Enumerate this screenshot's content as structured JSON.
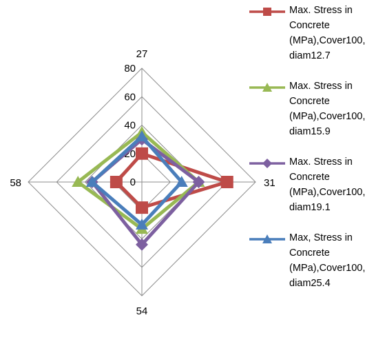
{
  "chart_data": {
    "type": "radar",
    "categories": [
      "27",
      "31",
      "54",
      "58"
    ],
    "rlim": [
      0,
      80
    ],
    "rticks": [
      0,
      20,
      40,
      60,
      80
    ],
    "grid": true,
    "legend_position": "right",
    "series": [
      {
        "name": "Max. Stress in Concrete (MPa),Cover100, diam12.7",
        "color": "#BE4B48",
        "marker": "square",
        "values": [
          20,
          60,
          18,
          18
        ]
      },
      {
        "name": "Max. Stress in Concrete (MPa),Cover100, diam15.9",
        "color": "#98B954",
        "marker": "triangle",
        "values": [
          35,
          40,
          33,
          45
        ]
      },
      {
        "name": "Max. Stress in Concrete (MPa),Cover100, diam19.1",
        "color": "#7D60A0",
        "marker": "diamond",
        "values": [
          30,
          40,
          44,
          35
        ]
      },
      {
        "name": "Max, Stress in Concrete (MPa),Cover100, diam25.4",
        "color": "#4A7EBB",
        "marker": "triangle",
        "values": [
          32,
          28,
          30,
          35
        ]
      }
    ]
  },
  "legend": {
    "items": [
      {
        "lines": [
          "Max. Stress in",
          "Concrete",
          "(MPa),Cover100,",
          "diam12.7"
        ]
      },
      {
        "lines": [
          "Max. Stress in",
          "Concrete",
          "(MPa),Cover100,",
          "diam15.9"
        ]
      },
      {
        "lines": [
          "Max. Stress in",
          "Concrete",
          "(MPa),Cover100,",
          "diam19.1"
        ]
      },
      {
        "lines": [
          "Max, Stress in",
          "Concrete",
          "(MPa),Cover100,",
          "diam25.4"
        ]
      }
    ]
  }
}
